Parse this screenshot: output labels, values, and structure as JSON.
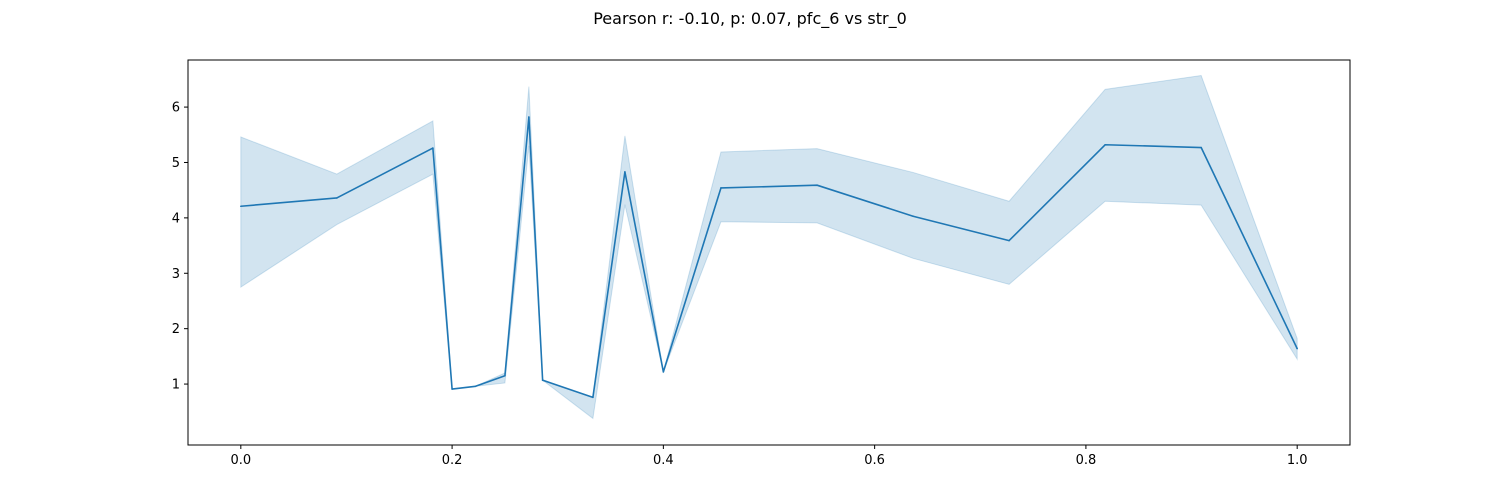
{
  "chart_data": {
    "type": "line",
    "title": "Pearson r: -0.10, p: 0.07, pfc_6 vs str_0",
    "xlabel": "",
    "ylabel": "",
    "xlim": [
      -0.05,
      1.05
    ],
    "ylim": [
      -0.1,
      6.85
    ],
    "xticks": [
      0.0,
      0.2,
      0.4,
      0.6,
      0.8,
      1.0
    ],
    "xtick_labels": [
      "0.0",
      "0.2",
      "0.4",
      "0.6",
      "0.8",
      "1.0"
    ],
    "yticks": [
      1,
      2,
      3,
      4,
      5,
      6
    ],
    "ytick_labels": [
      "1",
      "2",
      "3",
      "4",
      "5",
      "6"
    ],
    "grid": false,
    "legend": "none",
    "series": [
      {
        "color": "#1f77b4",
        "band_color": "#1f77b4",
        "band_opacity": 0.2,
        "points": [
          {
            "x": 0.0,
            "y": 4.21,
            "lo": 2.75,
            "hi": 5.46
          },
          {
            "x": 0.0909,
            "y": 4.36,
            "lo": 3.88,
            "hi": 4.79
          },
          {
            "x": 0.1818,
            "y": 5.26,
            "lo": 4.79,
            "hi": 5.75
          },
          {
            "x": 0.2,
            "y": 0.91,
            "lo": 0.91,
            "hi": 0.91
          },
          {
            "x": 0.2222,
            "y": 0.96,
            "lo": 0.96,
            "hi": 0.96
          },
          {
            "x": 0.25,
            "y": 1.15,
            "lo": 1.02,
            "hi": 1.2
          },
          {
            "x": 0.2727,
            "y": 5.82,
            "lo": 5.3,
            "hi": 6.37
          },
          {
            "x": 0.2857,
            "y": 1.07,
            "lo": 1.07,
            "hi": 1.07
          },
          {
            "x": 0.3333,
            "y": 0.76,
            "lo": 0.38,
            "hi": 0.76
          },
          {
            "x": 0.3636,
            "y": 4.83,
            "lo": 4.24,
            "hi": 5.48
          },
          {
            "x": 0.4,
            "y": 1.22,
            "lo": 1.22,
            "hi": 1.22
          },
          {
            "x": 0.4545,
            "y": 4.54,
            "lo": 3.93,
            "hi": 5.19
          },
          {
            "x": 0.5455,
            "y": 4.59,
            "lo": 3.91,
            "hi": 5.25
          },
          {
            "x": 0.6364,
            "y": 4.03,
            "lo": 3.27,
            "hi": 4.82
          },
          {
            "x": 0.7273,
            "y": 3.59,
            "lo": 2.8,
            "hi": 4.3
          },
          {
            "x": 0.8182,
            "y": 5.32,
            "lo": 4.3,
            "hi": 6.32
          },
          {
            "x": 0.9091,
            "y": 5.27,
            "lo": 4.23,
            "hi": 6.57
          },
          {
            "x": 1.0,
            "y": 1.64,
            "lo": 1.45,
            "hi": 1.82
          }
        ]
      }
    ]
  }
}
